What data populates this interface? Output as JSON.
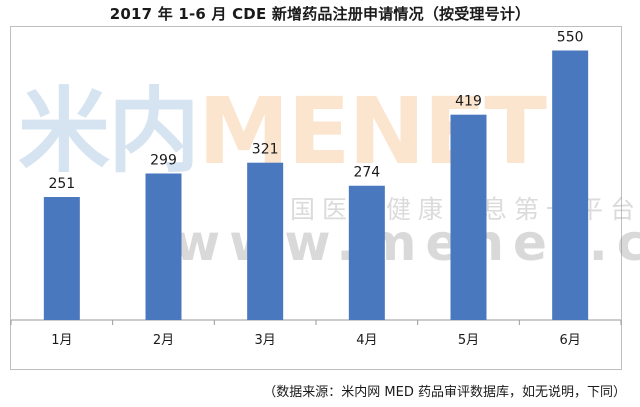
{
  "chart_data": {
    "type": "bar",
    "title": "2017 年 1-6 月 CDE 新增药品注册申请情况（按受理号计）",
    "categories": [
      "1月",
      "2月",
      "3月",
      "4月",
      "5月",
      "6月"
    ],
    "values": [
      251,
      299,
      321,
      274,
      419,
      550
    ],
    "ylim": [
      0,
      600
    ],
    "grid": false,
    "data_labels": true,
    "bar_color": "#4a78bf"
  },
  "watermark": {
    "logo_text_a": "米内",
    "logo_text_b": "MENET",
    "tagline": "中国医药健康信息第一平台",
    "url": "www.menet.com.cn"
  },
  "source_note": "（数据来源：米内网 MED 药品审评数据库，如无说明，下同）"
}
